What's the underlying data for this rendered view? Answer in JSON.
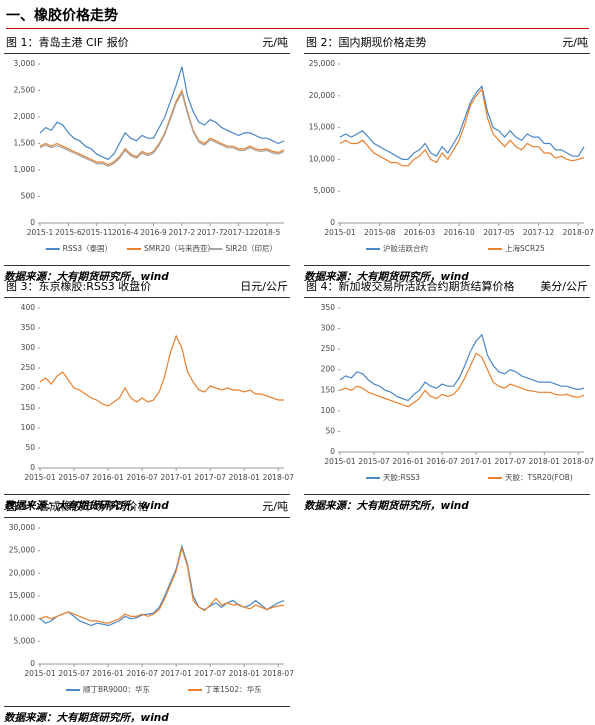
{
  "heading": "一、橡胶价格走势",
  "chart_data": [
    {
      "type": "line",
      "title": "图 1：青岛主港 CIF 报价",
      "unit": "元/吨",
      "source": "数据来源：大有期货研究所，wind",
      "x": [
        "2015-1",
        "2015-2",
        "2015-3",
        "2015-4",
        "2015-5",
        "2015-6",
        "2015-7",
        "2015-8",
        "2015-9",
        "2015-10",
        "2015-11",
        "2015-12",
        "2016-1",
        "2016-2",
        "2016-3",
        "2016-4",
        "2016-5",
        "2016-6",
        "2016-7",
        "2016-8",
        "2016-9",
        "2016-10",
        "2016-11",
        "2016-12",
        "2017-1",
        "2017-2",
        "2017-3",
        "2017-4",
        "2017-5",
        "2017-6",
        "2017-7",
        "2017-8",
        "2017-9",
        "2017-10",
        "2017-11",
        "2017-12",
        "2018-1",
        "2018-2",
        "2018-3",
        "2018-4",
        "2018-5",
        "2018-6",
        "2018-7",
        "2018-8"
      ],
      "xticks": [
        "2015-1",
        "2015-6",
        "2015-11",
        "2016-4",
        "2016-9",
        "2017-2",
        "2017-7",
        "2017-12",
        "2018-5"
      ],
      "ylim": [
        0,
        3000
      ],
      "yticks": [
        0,
        500,
        {
          "value": 1000,
          "label": "1,000"
        },
        {
          "value": 1500,
          "label": "1,500"
        },
        {
          "value": 2000,
          "label": "2,000"
        },
        {
          "value": 2500,
          "label": "2,500"
        },
        {
          "value": 3000,
          "label": "3,000"
        }
      ],
      "series": [
        {
          "name": "RSS3（泰国）",
          "color": "#4a86c8",
          "values": [
            1700,
            1800,
            1750,
            1900,
            1850,
            1700,
            1600,
            1550,
            1450,
            1400,
            1300,
            1250,
            1200,
            1300,
            1500,
            1700,
            1600,
            1550,
            1650,
            1600,
            1600,
            1800,
            2000,
            2300,
            2600,
            2950,
            2400,
            2100,
            1900,
            1850,
            1950,
            1900,
            1800,
            1750,
            1700,
            1650,
            1700,
            1700,
            1650,
            1600,
            1600,
            1550,
            1500,
            1550
          ]
        },
        {
          "name": "SMR20（马来西亚）",
          "color": "#e8802f",
          "values": [
            1450,
            1500,
            1450,
            1500,
            1450,
            1400,
            1350,
            1300,
            1250,
            1200,
            1150,
            1150,
            1100,
            1150,
            1250,
            1400,
            1300,
            1250,
            1350,
            1300,
            1350,
            1500,
            1700,
            2000,
            2300,
            2500,
            2100,
            1750,
            1550,
            1500,
            1600,
            1550,
            1500,
            1450,
            1450,
            1400,
            1400,
            1450,
            1400,
            1380,
            1400,
            1350,
            1330,
            1380
          ]
        },
        {
          "name": "SIR20（印尼）",
          "color": "#a6a6a6",
          "values": [
            1420,
            1470,
            1420,
            1460,
            1420,
            1370,
            1320,
            1270,
            1220,
            1170,
            1120,
            1120,
            1070,
            1120,
            1220,
            1370,
            1270,
            1220,
            1320,
            1270,
            1320,
            1470,
            1670,
            1960,
            2260,
            2450,
            2060,
            1720,
            1520,
            1470,
            1570,
            1520,
            1470,
            1420,
            1420,
            1370,
            1370,
            1420,
            1370,
            1350,
            1370,
            1320,
            1300,
            1350
          ]
        }
      ]
    },
    {
      "type": "line",
      "title": "图 2：国内期现价格走势",
      "unit": "元/吨",
      "source": "数据来源：大有期货研究所，wind",
      "x": [
        "2015-01",
        "2015-02",
        "2015-03",
        "2015-04",
        "2015-05",
        "2015-06",
        "2015-07",
        "2015-08",
        "2015-09",
        "2015-10",
        "2015-11",
        "2015-12",
        "2016-01",
        "2016-02",
        "2016-03",
        "2016-04",
        "2016-05",
        "2016-06",
        "2016-07",
        "2016-08",
        "2016-09",
        "2016-10",
        "2016-11",
        "2016-12",
        "2017-01",
        "2017-02",
        "2017-03",
        "2017-04",
        "2017-05",
        "2017-06",
        "2017-07",
        "2017-08",
        "2017-09",
        "2017-10",
        "2017-11",
        "2017-12",
        "2018-01",
        "2018-02",
        "2018-03",
        "2018-04",
        "2018-05",
        "2018-06",
        "2018-07",
        "2018-08"
      ],
      "xticks": [
        "2015-01",
        "2015-08",
        "2016-03",
        "2016-10",
        "2017-05",
        "2017-12",
        "2018-07"
      ],
      "ylim": [
        0,
        25000
      ],
      "yticks": [
        0,
        {
          "value": 5000,
          "label": "5,000"
        },
        {
          "value": 10000,
          "label": "10,000"
        },
        {
          "value": 15000,
          "label": "15,000"
        },
        {
          "value": 20000,
          "label": "20,000"
        },
        {
          "value": 25000,
          "label": "25,000"
        }
      ],
      "series": [
        {
          "name": "沪胶活跃合约",
          "color": "#4a86c8",
          "values": [
            13500,
            14000,
            13500,
            14000,
            14500,
            13500,
            12500,
            12000,
            11500,
            11000,
            10500,
            10000,
            10000,
            11000,
            11500,
            12500,
            11000,
            10500,
            12000,
            11000,
            12500,
            14000,
            16500,
            19000,
            20500,
            21500,
            17500,
            15000,
            14500,
            13500,
            14500,
            13500,
            13000,
            14000,
            13500,
            13500,
            12500,
            12500,
            11500,
            11500,
            11000,
            10500,
            10500,
            12000
          ]
        },
        {
          "name": "上海SCR25",
          "color": "#e8802f",
          "values": [
            12500,
            13000,
            12500,
            12500,
            13000,
            12000,
            11000,
            10500,
            10000,
            9500,
            9500,
            9000,
            9000,
            10000,
            10500,
            11500,
            10000,
            9500,
            11000,
            10000,
            11500,
            13000,
            15500,
            18500,
            20000,
            21000,
            16500,
            14000,
            13000,
            12000,
            13000,
            12000,
            11500,
            12500,
            12000,
            12000,
            11000,
            11000,
            10200,
            10500,
            10000,
            9800,
            10000,
            10300
          ]
        }
      ]
    },
    {
      "type": "line",
      "title": "图 3：东京橡胶:RSS3 收盘价",
      "unit": "日元/公斤",
      "source": "数据来源：大有期货研究所，wind",
      "x": [
        "2015-01",
        "2015-02",
        "2015-03",
        "2015-04",
        "2015-05",
        "2015-06",
        "2015-07",
        "2015-08",
        "2015-09",
        "2015-10",
        "2015-11",
        "2015-12",
        "2016-01",
        "2016-02",
        "2016-03",
        "2016-04",
        "2016-05",
        "2016-06",
        "2016-07",
        "2016-08",
        "2016-09",
        "2016-10",
        "2016-11",
        "2016-12",
        "2017-01",
        "2017-02",
        "2017-03",
        "2017-04",
        "2017-05",
        "2017-06",
        "2017-07",
        "2017-08",
        "2017-09",
        "2017-10",
        "2017-11",
        "2017-12",
        "2018-01",
        "2018-02",
        "2018-03",
        "2018-04",
        "2018-05",
        "2018-06",
        "2018-07",
        "2018-08"
      ],
      "xticks": [
        "2015-01",
        "2015-07",
        "2016-01",
        "2016-07",
        "2017-01",
        "2017-07",
        "2018-01",
        "2018-07"
      ],
      "ylim": [
        0,
        400
      ],
      "yticks": [
        0,
        50,
        100,
        150,
        200,
        250,
        300,
        350,
        400
      ],
      "color": "#e8802f",
      "values": [
        215,
        225,
        210,
        230,
        240,
        220,
        200,
        195,
        185,
        175,
        170,
        160,
        155,
        165,
        175,
        200,
        175,
        165,
        175,
        165,
        170,
        190,
        230,
        290,
        330,
        300,
        240,
        215,
        195,
        190,
        205,
        200,
        195,
        200,
        195,
        195,
        190,
        195,
        185,
        185,
        180,
        175,
        170,
        170
      ]
    },
    {
      "type": "line",
      "title": "图 4：新加坡交易所活跃合约期货结算价格",
      "unit": "美分/公斤",
      "source": "数据来源：大有期货研究所，wind",
      "x": [
        "2015-01",
        "2015-02",
        "2015-03",
        "2015-04",
        "2015-05",
        "2015-06",
        "2015-07",
        "2015-08",
        "2015-09",
        "2015-10",
        "2015-11",
        "2015-12",
        "2016-01",
        "2016-02",
        "2016-03",
        "2016-04",
        "2016-05",
        "2016-06",
        "2016-07",
        "2016-08",
        "2016-09",
        "2016-10",
        "2016-11",
        "2016-12",
        "2017-01",
        "2017-02",
        "2017-03",
        "2017-04",
        "2017-05",
        "2017-06",
        "2017-07",
        "2017-08",
        "2017-09",
        "2017-10",
        "2017-11",
        "2017-12",
        "2018-01",
        "2018-02",
        "2018-03",
        "2018-04",
        "2018-05",
        "2018-06",
        "2018-07",
        "2018-08"
      ],
      "xticks": [
        "2015-01",
        "2015-07",
        "2016-01",
        "2016-07",
        "2017-01",
        "2017-07",
        "2018-01",
        "2018-07"
      ],
      "ylim": [
        0,
        350
      ],
      "yticks": [
        0,
        50,
        100,
        150,
        200,
        250,
        300,
        350
      ],
      "series": [
        {
          "name": "天胶:RSS3",
          "color": "#4a86c8",
          "values": [
            175,
            185,
            180,
            195,
            190,
            175,
            165,
            160,
            150,
            145,
            135,
            130,
            125,
            140,
            150,
            170,
            160,
            155,
            165,
            160,
            160,
            180,
            210,
            245,
            270,
            285,
            235,
            210,
            195,
            190,
            200,
            195,
            185,
            180,
            175,
            170,
            170,
            170,
            165,
            160,
            160,
            155,
            152,
            155
          ]
        },
        {
          "name": "天胶：TSR20(FOB)",
          "color": "#e8802f",
          "values": [
            150,
            155,
            150,
            160,
            155,
            145,
            140,
            135,
            130,
            125,
            120,
            115,
            110,
            120,
            130,
            150,
            135,
            130,
            140,
            135,
            140,
            155,
            180,
            210,
            240,
            230,
            200,
            170,
            160,
            155,
            165,
            160,
            155,
            150,
            148,
            145,
            145,
            145,
            140,
            138,
            140,
            135,
            133,
            138
          ]
        }
      ]
    },
    {
      "type": "line",
      "title": "图 5：合成橡胶市场平均价格",
      "unit": "元/吨",
      "source": "数据来源：大有期货研究所，wind",
      "x": [
        "2015-01",
        "2015-02",
        "2015-03",
        "2015-04",
        "2015-05",
        "2015-06",
        "2015-07",
        "2015-08",
        "2015-09",
        "2015-10",
        "2015-11",
        "2015-12",
        "2016-01",
        "2016-02",
        "2016-03",
        "2016-04",
        "2016-05",
        "2016-06",
        "2016-07",
        "2016-08",
        "2016-09",
        "2016-10",
        "2016-11",
        "2016-12",
        "2017-01",
        "2017-02",
        "2017-03",
        "2017-04",
        "2017-05",
        "2017-06",
        "2017-07",
        "2017-08",
        "2017-09",
        "2017-10",
        "2017-11",
        "2017-12",
        "2018-01",
        "2018-02",
        "2018-03",
        "2018-04",
        "2018-05",
        "2018-06",
        "2018-07",
        "2018-08"
      ],
      "xticks": [
        "2015-01",
        "2015-07",
        "2016-01",
        "2016-07",
        "2017-01",
        "2017-07",
        "2018-01",
        "2018-07"
      ],
      "ylim": [
        0,
        30000
      ],
      "yticks": [
        0,
        {
          "value": 5000,
          "label": "5,000"
        },
        {
          "value": 10000,
          "label": "10,000"
        },
        {
          "value": 15000,
          "label": "15,000"
        },
        {
          "value": 20000,
          "label": "20,000"
        },
        {
          "value": 25000,
          "label": "25,000"
        },
        {
          "value": 30000,
          "label": "30,000"
        }
      ],
      "series": [
        {
          "name": "顺丁BR9000：华东",
          "color": "#4a86c8",
          "values": [
            10000,
            9000,
            9500,
            10500,
            11000,
            11500,
            10500,
            9500,
            9000,
            8500,
            9000,
            8800,
            8500,
            9000,
            9500,
            10500,
            10000,
            10200,
            10800,
            11000,
            11200,
            12500,
            15000,
            18000,
            21000,
            26000,
            22000,
            15000,
            12500,
            12000,
            12800,
            13500,
            12500,
            13500,
            14000,
            13000,
            12500,
            13000,
            14000,
            13000,
            12000,
            12800,
            13500,
            14000
          ]
        },
        {
          "name": "丁苯1502：华东",
          "color": "#e8802f",
          "values": [
            10000,
            10500,
            10000,
            10500,
            11000,
            11500,
            11000,
            10500,
            10000,
            9500,
            9500,
            9200,
            9000,
            9500,
            10000,
            11000,
            10500,
            10500,
            11000,
            10500,
            11000,
            12000,
            14500,
            17500,
            20500,
            25500,
            21500,
            14000,
            12500,
            11800,
            13000,
            14500,
            13000,
            13500,
            13000,
            13200,
            12500,
            12200,
            13000,
            12500,
            12000,
            12500,
            12800,
            13000
          ]
        }
      ]
    }
  ]
}
